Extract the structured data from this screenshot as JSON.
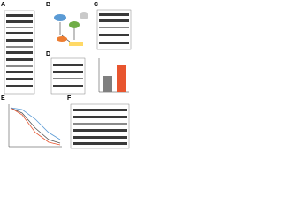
{
  "panels": {
    "a": {
      "label": "A"
    },
    "b": {
      "label": "B"
    },
    "c": {
      "label": "C"
    },
    "d": {
      "label": "D"
    },
    "e": {
      "label": "E"
    },
    "f": {
      "label": "F"
    }
  }
}
